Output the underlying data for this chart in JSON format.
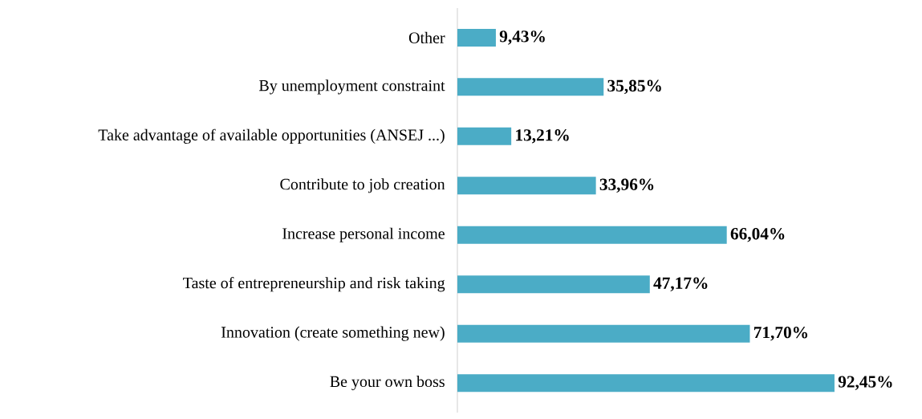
{
  "chart_data": {
    "type": "bar",
    "orientation": "horizontal",
    "categories": [
      "Other",
      "By unemployment constraint",
      "Take advantage of available opportunities (ANSEJ ...)",
      "Contribute to job creation",
      "Increase personal income",
      "Taste of entrepreneurship and risk taking",
      "Innovation (create something new)",
      "Be your own boss"
    ],
    "values": [
      9.43,
      35.85,
      13.21,
      33.96,
      66.04,
      47.17,
      71.7,
      92.45
    ],
    "value_labels": [
      "9,43%",
      "35,85%",
      "13,21%",
      "33,96%",
      "66,04%",
      "47,17%",
      "71,70%",
      "92,45%"
    ],
    "color": "#4bacc6"
  }
}
